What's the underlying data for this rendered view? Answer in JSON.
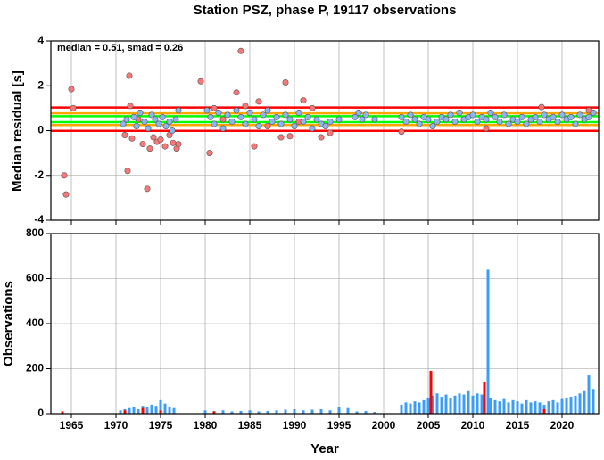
{
  "chart_data": [
    {
      "type": "scatter",
      "title": "Station PSZ, phase P, 19117 observations",
      "annotation": "median = 0.51, smad = 0.26",
      "ylabel": "Median residual [s]",
      "xlim": [
        1962.7,
        2024.1
      ],
      "ylim": [
        -4,
        4
      ],
      "xticks": [
        1965,
        1970,
        1975,
        1980,
        1985,
        1990,
        1995,
        2000,
        2005,
        2010,
        2015,
        2020
      ],
      "yticks": [
        -4,
        -2,
        0,
        2,
        4
      ],
      "grid": true,
      "hlines": [
        {
          "value": 1.03,
          "color": "#ff0000"
        },
        {
          "value": -0.01,
          "color": "#ff0000"
        },
        {
          "value": 0.77,
          "color": "#ffa500"
        },
        {
          "value": 0.25,
          "color": "#ffa500"
        },
        {
          "value": 0.64,
          "color": "#00ff00"
        },
        {
          "value": 0.38,
          "color": "#00ff00"
        }
      ],
      "series": [
        {
          "color": "#f87878",
          "x": [
            1964.2,
            1964.4,
            1965.0,
            1965.2,
            1971.0,
            1971.3,
            1971.5,
            1971.6,
            1971.8,
            1972.5,
            1973.0,
            1973.5,
            1973.8,
            1974.2,
            1974.6,
            1975.0,
            1975.5,
            1976.0,
            1976.4,
            1976.8,
            1977.0,
            1979.5,
            1980.5,
            1981.0,
            1982.0,
            1983.5,
            1984.0,
            1984.5,
            1985.5,
            1986.0,
            1987.0,
            1988.5,
            1989.0,
            1989.5,
            1990.5,
            1991.0,
            1992.0,
            1993.0,
            1994.0,
            2002.0,
            2011.5,
            2017.7,
            2023.0
          ],
          "values": [
            -2.0,
            -2.85,
            1.85,
            1.0,
            -0.2,
            -1.8,
            2.45,
            1.1,
            -0.35,
            0.5,
            -0.6,
            -2.6,
            -0.8,
            -0.3,
            -0.5,
            -0.4,
            -0.7,
            -0.2,
            -0.55,
            -0.8,
            -0.6,
            2.2,
            -1.0,
            1.0,
            0.5,
            1.7,
            3.55,
            1.1,
            -0.7,
            1.3,
            0.2,
            -0.3,
            2.15,
            -0.25,
            0.4,
            1.35,
            1.0,
            -0.3,
            -0.1,
            -0.05,
            0.1,
            1.05,
            0.9
          ]
        },
        {
          "color": "#8cb4f0",
          "x": [
            1970.8,
            1971.2,
            1972.0,
            1972.3,
            1972.7,
            1973.2,
            1973.6,
            1974.0,
            1974.4,
            1974.8,
            1975.2,
            1975.6,
            1976.0,
            1976.3,
            1976.7,
            1977.0,
            1980.2,
            1980.6,
            1981.0,
            1981.5,
            1982.0,
            1982.5,
            1983.0,
            1983.5,
            1984.0,
            1984.5,
            1985.0,
            1985.5,
            1986.0,
            1986.5,
            1987.0,
            1987.5,
            1988.0,
            1988.5,
            1989.0,
            1989.5,
            1990.0,
            1990.5,
            1991.0,
            1991.5,
            1992.0,
            1992.5,
            1993.0,
            1993.5,
            1994.0,
            1995.0,
            1996.8,
            1997.2,
            1997.6,
            1998.0,
            1999.0,
            2002.0,
            2002.5,
            2003.0,
            2003.5,
            2004.0,
            2004.5,
            2005.0,
            2005.5,
            2006.0,
            2006.5,
            2007.0,
            2007.5,
            2008.0,
            2008.5,
            2009.0,
            2009.5,
            2010.0,
            2010.5,
            2011.0,
            2011.5,
            2012.0,
            2012.5,
            2013.0,
            2013.5,
            2014.0,
            2014.5,
            2015.0,
            2015.5,
            2016.0,
            2016.5,
            2017.0,
            2017.5,
            2018.0,
            2018.5,
            2019.0,
            2019.5,
            2020.0,
            2020.5,
            2021.0,
            2021.5,
            2022.0,
            2022.5,
            2023.0,
            2023.5
          ],
          "values": [
            0.3,
            0.5,
            0.6,
            0.2,
            0.8,
            0.4,
            0.1,
            0.7,
            0.5,
            0.3,
            0.6,
            0.2,
            0.4,
            0.0,
            0.5,
            0.9,
            0.9,
            0.6,
            0.3,
            0.8,
            0.1,
            0.7,
            0.4,
            0.9,
            0.6,
            0.3,
            0.8,
            0.5,
            0.2,
            0.7,
            0.9,
            0.4,
            0.6,
            0.3,
            0.7,
            0.5,
            0.2,
            0.8,
            0.4,
            0.6,
            0.1,
            0.5,
            0.3,
            0.2,
            0.4,
            0.5,
            0.6,
            0.8,
            0.5,
            0.7,
            0.5,
            0.6,
            0.4,
            0.7,
            0.5,
            0.3,
            0.6,
            0.5,
            0.2,
            0.4,
            0.6,
            0.5,
            0.7,
            0.4,
            0.8,
            0.5,
            0.6,
            0.7,
            0.4,
            0.6,
            0.5,
            0.8,
            0.6,
            0.4,
            0.7,
            0.3,
            0.5,
            0.4,
            0.6,
            0.3,
            0.5,
            0.6,
            0.4,
            0.7,
            0.5,
            0.6,
            0.4,
            0.7,
            0.5,
            0.6,
            0.3,
            0.7,
            0.5,
            0.6,
            0.8
          ]
        }
      ]
    },
    {
      "type": "bar",
      "xlabel": "Year",
      "ylabel": "Observations",
      "xlim": [
        1962.7,
        2024.1
      ],
      "ylim": [
        0,
        800
      ],
      "xticks": [
        1965,
        1970,
        1975,
        1980,
        1985,
        1990,
        1995,
        2000,
        2005,
        2010,
        2015,
        2020
      ],
      "yticks": [
        0,
        200,
        400,
        600,
        800
      ],
      "grid": true,
      "series": [
        {
          "color": "#3d9cf5",
          "x": [
            1970.5,
            1971.0,
            1971.5,
            1972.0,
            1972.5,
            1973.0,
            1973.5,
            1974.0,
            1974.5,
            1975.0,
            1975.5,
            1976.0,
            1976.5,
            1980.0,
            1981.0,
            1982.0,
            1983.0,
            1984.0,
            1985.0,
            1986.0,
            1987.0,
            1988.0,
            1989.0,
            1990.0,
            1991.0,
            1992.0,
            1993.0,
            1994.0,
            1995.0,
            1996.0,
            1997.0,
            1998.0,
            1999.0,
            2002.0,
            2002.5,
            2003.0,
            2003.5,
            2004.0,
            2004.5,
            2005.0,
            2005.5,
            2006.0,
            2006.5,
            2007.0,
            2007.5,
            2008.0,
            2008.5,
            2009.0,
            2009.5,
            2010.0,
            2010.5,
            2011.0,
            2011.7,
            2012.0,
            2012.5,
            2013.0,
            2013.5,
            2014.0,
            2014.5,
            2015.0,
            2015.5,
            2016.0,
            2016.5,
            2017.0,
            2017.5,
            2018.0,
            2018.5,
            2019.0,
            2019.5,
            2020.0,
            2020.5,
            2021.0,
            2021.5,
            2022.0,
            2022.5,
            2023.0,
            2023.5
          ],
          "values": [
            15,
            20,
            25,
            30,
            20,
            35,
            30,
            40,
            35,
            60,
            45,
            30,
            25,
            15,
            12,
            15,
            10,
            12,
            15,
            10,
            12,
            15,
            18,
            20,
            15,
            18,
            20,
            15,
            30,
            25,
            10,
            12,
            8,
            40,
            50,
            45,
            55,
            50,
            60,
            70,
            80,
            90,
            75,
            85,
            70,
            80,
            90,
            85,
            100,
            80,
            90,
            85,
            640,
            70,
            60,
            55,
            65,
            50,
            60,
            55,
            45,
            60,
            50,
            55,
            50,
            40,
            55,
            60,
            50,
            65,
            70,
            75,
            80,
            90,
            100,
            170,
            110
          ]
        },
        {
          "color": "#ff0000",
          "x": [
            1964.0,
            1971.0,
            1973.0,
            1975.0,
            1981.0,
            2005.3,
            2011.3,
            2018.0
          ],
          "values": [
            10,
            15,
            25,
            15,
            10,
            190,
            140,
            20
          ]
        }
      ]
    }
  ]
}
